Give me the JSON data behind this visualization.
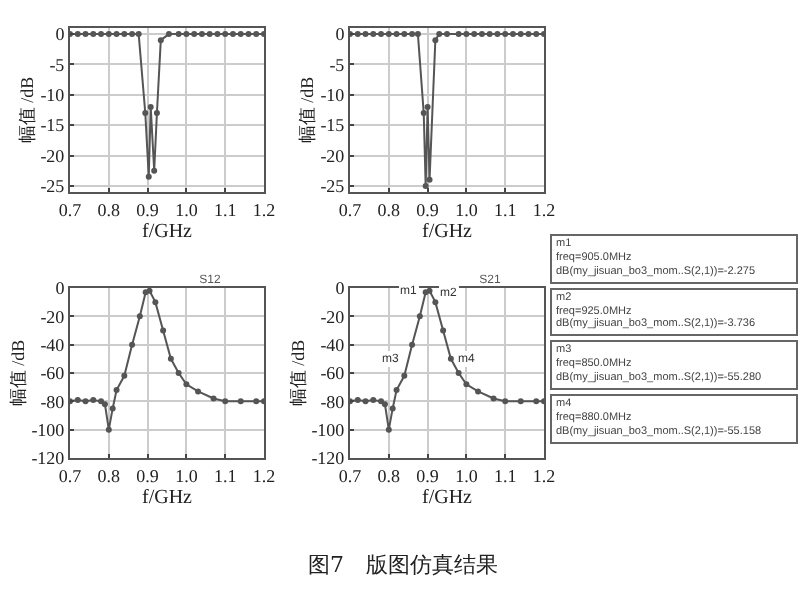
{
  "chart_data": [
    {
      "type": "line",
      "xlabel": "f/GHz",
      "ylabel": "幅值 /dB",
      "xlim": [
        0.7,
        1.2
      ],
      "xticks": [
        {
          "value": 0.7,
          "label": "0.7"
        },
        {
          "value": 0.8,
          "label": "0.8"
        },
        {
          "value": 0.9,
          "label": "0.9"
        },
        {
          "value": 1.0,
          "label": "1.0"
        },
        {
          "value": 1.1,
          "label": "1.1"
        },
        {
          "value": 1.2,
          "label": "1.2"
        }
      ],
      "ylim": [
        -26,
        1
      ],
      "yticks": [
        0,
        -5,
        -10,
        -15,
        -20,
        -25
      ],
      "grid": true,
      "marker": "circle",
      "line_style": "solid",
      "series": [
        {
          "color": "#555555",
          "x": [
            0.7,
            0.72,
            0.74,
            0.76,
            0.78,
            0.8,
            0.82,
            0.84,
            0.86,
            0.877,
            0.894,
            0.903,
            0.908,
            0.917,
            0.924,
            0.934,
            0.955,
            0.98,
            1.0,
            1.02,
            1.04,
            1.06,
            1.08,
            1.1,
            1.12,
            1.14,
            1.16,
            1.18,
            1.2
          ],
          "values": [
            0,
            0,
            0,
            0,
            0,
            0,
            0,
            0,
            0,
            0,
            -13,
            -23.5,
            -12,
            -22.5,
            -13,
            -1,
            0,
            0,
            0,
            0,
            0,
            0,
            0,
            0,
            0,
            0,
            0,
            0,
            0
          ]
        }
      ]
    },
    {
      "type": "line",
      "xlabel": "f/GHz",
      "ylabel": "幅值 /dB",
      "xlim": [
        0.7,
        1.2
      ],
      "xticks": [
        {
          "value": 0.7,
          "label": "0.7"
        },
        {
          "value": 0.8,
          "label": "0.8"
        },
        {
          "value": 0.9,
          "label": "0.9"
        },
        {
          "value": 1.0,
          "label": "1.0"
        },
        {
          "value": 1.1,
          "label": "1.1"
        },
        {
          "value": 1.2,
          "label": "1.2"
        }
      ],
      "ylim": [
        -26,
        1
      ],
      "yticks": [
        0,
        -5,
        -10,
        -15,
        -20,
        -25
      ],
      "grid": true,
      "marker": "circle",
      "line_style": "solid",
      "series": [
        {
          "color": "#555555",
          "x": [
            0.7,
            0.72,
            0.74,
            0.76,
            0.78,
            0.8,
            0.82,
            0.84,
            0.86,
            0.875,
            0.89,
            0.895,
            0.9,
            0.905,
            0.92,
            0.93,
            0.95,
            0.98,
            1.0,
            1.02,
            1.04,
            1.06,
            1.08,
            1.1,
            1.12,
            1.14,
            1.16,
            1.18,
            1.2
          ],
          "values": [
            0,
            0,
            0,
            0,
            0,
            0,
            0,
            0,
            0,
            0,
            -13,
            -25,
            -12,
            -24,
            -1,
            0,
            0,
            0,
            0,
            0,
            0,
            0,
            0,
            0,
            0,
            0,
            0,
            0,
            0
          ]
        }
      ]
    },
    {
      "type": "line",
      "title": "S12",
      "xlabel": "f/GHz",
      "ylabel": "幅值 /dB",
      "xlim": [
        0.7,
        1.2
      ],
      "xticks": [
        {
          "value": 0.7,
          "label": "0.7"
        },
        {
          "value": 0.8,
          "label": "0.8"
        },
        {
          "value": 0.9,
          "label": "0.9"
        },
        {
          "value": 1.0,
          "label": "1.0"
        },
        {
          "value": 1.1,
          "label": "1.1"
        },
        {
          "value": 1.2,
          "label": "1.2"
        }
      ],
      "ylim": [
        -120,
        0
      ],
      "yticks": [
        0,
        -20,
        -40,
        -60,
        -80,
        -100,
        -120
      ],
      "grid": true,
      "marker": "circle",
      "line_style": "solid",
      "annotations": [
        "图7　版图仿真结果"
      ],
      "series": [
        {
          "color": "#555555",
          "x": [
            0.7,
            0.72,
            0.74,
            0.76,
            0.78,
            0.79,
            0.8,
            0.81,
            0.82,
            0.84,
            0.86,
            0.88,
            0.895,
            0.905,
            0.92,
            0.94,
            0.96,
            0.98,
            1.0,
            1.03,
            1.07,
            1.1,
            1.14,
            1.18,
            1.2
          ],
          "values": [
            -80,
            -79,
            -80,
            -79,
            -80,
            -82,
            -100,
            -85,
            -72,
            -62,
            -40,
            -20,
            -3,
            -2,
            -10,
            -30,
            -50,
            -60,
            -68,
            -73,
            -78,
            -80,
            -80,
            -80,
            -80
          ]
        }
      ]
    },
    {
      "type": "line",
      "title": "S21",
      "xlabel": "f/GHz",
      "ylabel": "幅值 /dB",
      "xlim": [
        0.7,
        1.2
      ],
      "xticks": [
        {
          "value": 0.7,
          "label": "0.7"
        },
        {
          "value": 0.8,
          "label": "0.8"
        },
        {
          "value": 0.9,
          "label": "0.9"
        },
        {
          "value": 1.0,
          "label": "1.0"
        },
        {
          "value": 1.1,
          "label": "1.1"
        },
        {
          "value": 1.2,
          "label": "1.2"
        }
      ],
      "ylim": [
        -120,
        0
      ],
      "yticks": [
        0,
        -20,
        -40,
        -60,
        -80,
        -100,
        -120
      ],
      "grid": true,
      "marker": "circle",
      "line_style": "solid",
      "annotations": [
        {
          "text": "m1",
          "x": 0.895,
          "y": -2
        },
        {
          "text": "m2",
          "x": 0.91,
          "y": -4
        },
        {
          "text": "m3",
          "x": 0.85,
          "y": -50
        },
        {
          "text": "m4",
          "x": 0.96,
          "y": -50
        },
        "m1\nfreq=905.0MHz\ndB(my_jisuan_bo3_mom..S(2,1))=-2.275",
        "m2\nfreq=925.0MHz\ndB(my_jisuan_bo3_mom..S(2,1))=-3.736",
        "m3\nfreq=850.0MHz\ndB(my_jisuan_bo3_mom..S(2,1))=-55.280",
        "m4\nfreq=880.0MHz\ndB(my_jisuan_bo3_mom..S(2,1))=-55.158"
      ],
      "series": [
        {
          "color": "#555555",
          "x": [
            0.7,
            0.72,
            0.74,
            0.76,
            0.78,
            0.79,
            0.8,
            0.81,
            0.82,
            0.84,
            0.86,
            0.88,
            0.895,
            0.905,
            0.92,
            0.94,
            0.96,
            0.98,
            1.0,
            1.03,
            1.07,
            1.1,
            1.14,
            1.18,
            1.2
          ],
          "values": [
            -80,
            -79,
            -80,
            -79,
            -80,
            -82,
            -100,
            -85,
            -72,
            -62,
            -40,
            -20,
            -3,
            -2,
            -10,
            -30,
            -50,
            -60,
            -68,
            -73,
            -78,
            -80,
            -80,
            -80,
            -80
          ]
        }
      ]
    }
  ]
}
